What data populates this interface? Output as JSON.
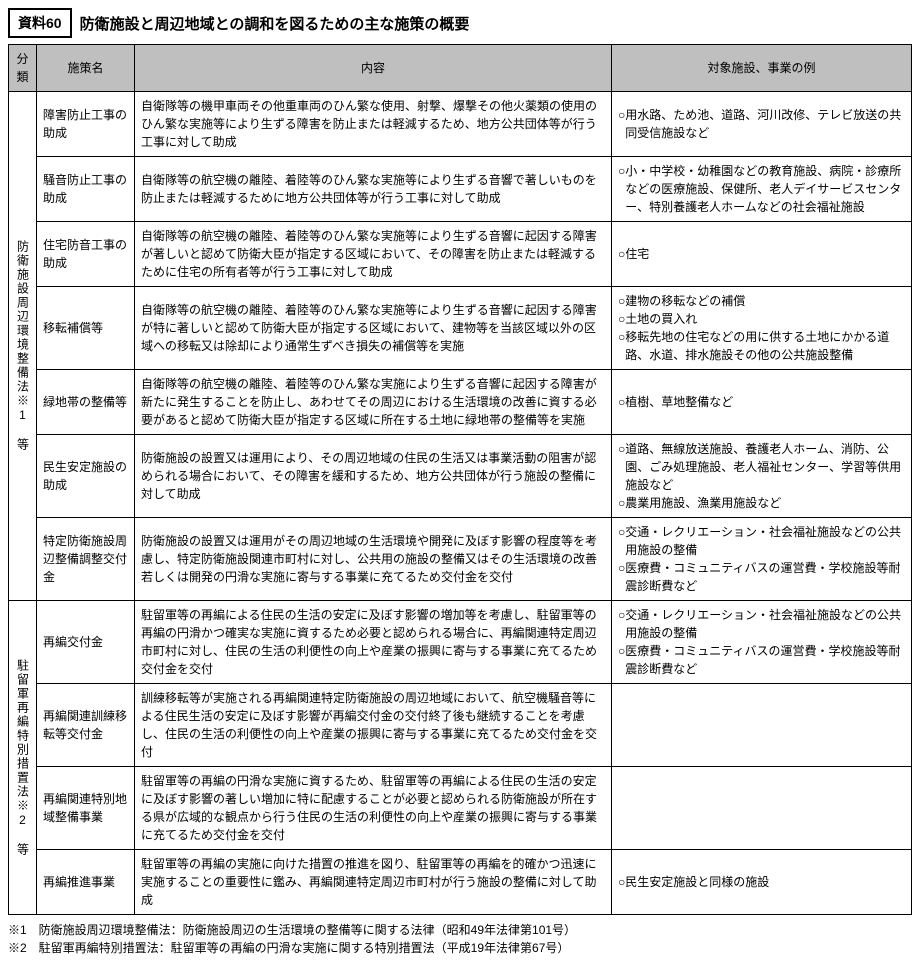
{
  "badge": "資料60",
  "title": "防衛施設と周辺地域との調和を図るための主な施策の概要",
  "headers": {
    "cat": "分類",
    "name": "施策名",
    "desc": "内容",
    "ex": "対象施設、事業の例"
  },
  "cat1": "防衛施設周辺環境整備法※1　等",
  "cat2": "駐留軍再編特別措置法※2　等",
  "rows": [
    {
      "name": "障害防止工事の助成",
      "desc": "自衛隊等の機甲車両その他重車両のひん繁な使用、射撃、爆撃その他火薬類の使用のひん繁な実施等により生ずる障害を防止または軽減するため、地方公共団体等が行う工事に対して助成",
      "ex": [
        "用水路、ため池、道路、河川改修、テレビ放送の共同受信施設など"
      ]
    },
    {
      "name": "騒音防止工事の助成",
      "desc": "自衛隊等の航空機の離陸、着陸等のひん繁な実施等により生ずる音響で著しいものを防止または軽減するために地方公共団体等が行う工事に対して助成",
      "ex": [
        "小・中学校・幼稚園などの教育施設、病院・診療所などの医療施設、保健所、老人デイサービスセンター、特別養護老人ホームなどの社会福祉施設"
      ]
    },
    {
      "name": "住宅防音工事の助成",
      "desc": "自衛隊等の航空機の離陸、着陸等のひん繁な実施等により生ずる音響に起因する障害が著しいと認めて防衛大臣が指定する区域において、その障害を防止または軽減するために住宅の所有者等が行う工事に対して助成",
      "ex": [
        "住宅"
      ]
    },
    {
      "name": "移転補償等",
      "desc": "自衛隊等の航空機の離陸、着陸等のひん繁な実施等により生ずる音響に起因する障害が特に著しいと認めて防衛大臣が指定する区域において、建物等を当該区域以外の区域への移転又は除却により通常生ずべき損失の補償等を実施",
      "ex": [
        "建物の移転などの補償",
        "土地の買入れ",
        "移転先地の住宅などの用に供する土地にかかる道路、水道、排水施設その他の公共施設整備"
      ]
    },
    {
      "name": "緑地帯の整備等",
      "desc": "自衛隊等の航空機の離陸、着陸等のひん繁な実施により生ずる音響に起因する障害が新たに発生することを防止し、あわせてその周辺における生活環境の改善に資する必要があると認めて防衛大臣が指定する区域に所在する土地に緑地帯の整備等を実施",
      "ex": [
        "植樹、草地整備など"
      ]
    },
    {
      "name": "民生安定施設の助成",
      "desc": "防衛施設の設置又は運用により、その周辺地域の住民の生活又は事業活動の阻害が認められる場合において、その障害を緩和するため、地方公共団体が行う施設の整備に対して助成",
      "ex": [
        "道路、無線放送施設、養護老人ホーム、消防、公園、ごみ処理施設、老人福祉センター、学習等供用施設など",
        "農業用施設、漁業用施設など"
      ]
    },
    {
      "name": "特定防衛施設周辺整備調整交付金",
      "desc": "防衛施設の設置又は運用がその周辺地域の生活環境や開発に及ぼす影響の程度等を考慮し、特定防衛施設関連市町村に対し、公共用の施設の整備又はその生活環境の改善若しくは開発の円滑な実施に寄与する事業に充てるため交付金を交付",
      "ex": [
        "交通・レクリエーション・社会福祉施設などの公共用施設の整備",
        "医療費・コミュニティバスの運営費・学校施設等耐震診断費など"
      ]
    },
    {
      "name": "再編交付金",
      "desc": "駐留軍等の再編による住民の生活の安定に及ぼす影響の増加等を考慮し、駐留軍等の再編の円滑かつ確実な実施に資するため必要と認められる場合に、再編関連特定周辺市町村に対し、住民の生活の利便性の向上や産業の振興に寄与する事業に充てるため交付金を交付",
      "ex": [
        "交通・レクリエーション・社会福祉施設などの公共用施設の整備",
        "医療費・コミュニティバスの運営費・学校施設等耐震診断費など"
      ]
    },
    {
      "name": "再編関連訓練移転等交付金",
      "desc": "訓練移転等が実施される再編関連特定防衛施設の周辺地域において、航空機騒音等による住民生活の安定に及ぼす影響が再編交付金の交付終了後も継続することを考慮し、住民の生活の利便性の向上や産業の振興に寄与する事業に充てるため交付金を交付",
      "ex": []
    },
    {
      "name": "再編関連特別地域整備事業",
      "desc": "駐留軍等の再編の円滑な実施に資するため、駐留軍等の再編による住民の生活の安定に及ぼす影響の著しい増加に特に配慮することが必要と認められる防衛施設が所在する県が広域的な観点から行う住民の生活の利便性の向上や産業の振興に寄与する事業に充てるため交付金を交付",
      "ex": []
    },
    {
      "name": "再編推進事業",
      "desc": "駐留軍等の再編の実施に向けた措置の推進を図り、駐留軍等の再編を的確かつ迅速に実施することの重要性に鑑み、再編関連特定周辺市町村が行う施設の整備に対して助成",
      "ex": [
        "民生安定施設と同様の施設"
      ]
    }
  ],
  "notes": [
    "※1　防衛施設周辺環境整備法：防衛施設周辺の生活環境の整備等に関する法律（昭和49年法律第101号）",
    "※2　駐留軍再編特別措置法：駐留軍等の再編の円滑な実施に関する特別措置法（平成19年法律第67号）"
  ]
}
